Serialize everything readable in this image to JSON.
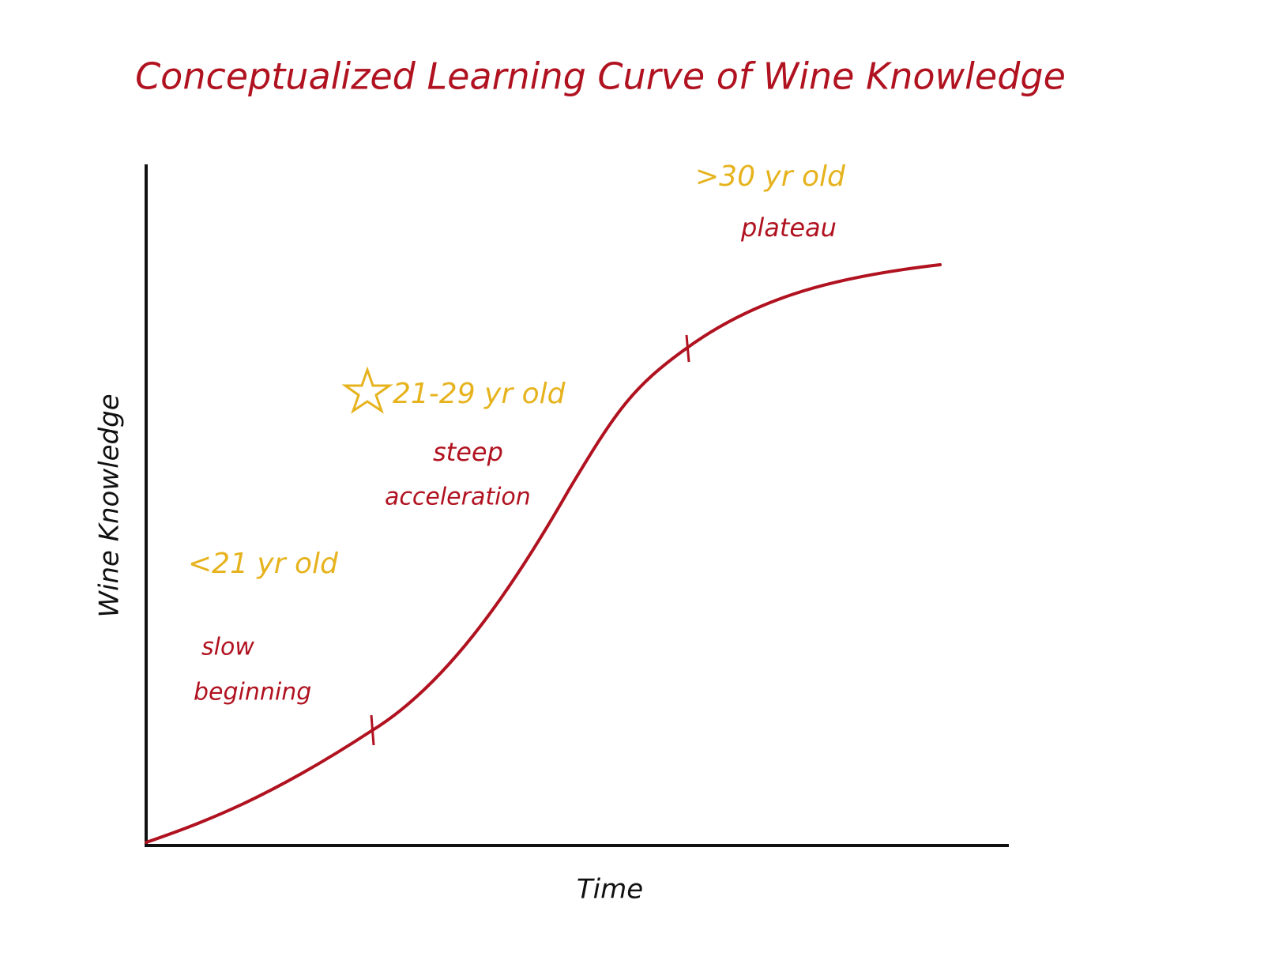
{
  "title": "Conceptualized Learning Curve of Wine Knowledge",
  "y_axis_label": "Wine Knowledge",
  "x_axis_label": "Time",
  "stages": [
    {
      "age": "<21 yr old",
      "description": [
        "slow",
        "beginning"
      ]
    },
    {
      "age": "21-29 yr old",
      "description": [
        "steep",
        "acceleration"
      ]
    },
    {
      "age": ">30 yr old",
      "description": [
        "plateau"
      ]
    }
  ]
}
